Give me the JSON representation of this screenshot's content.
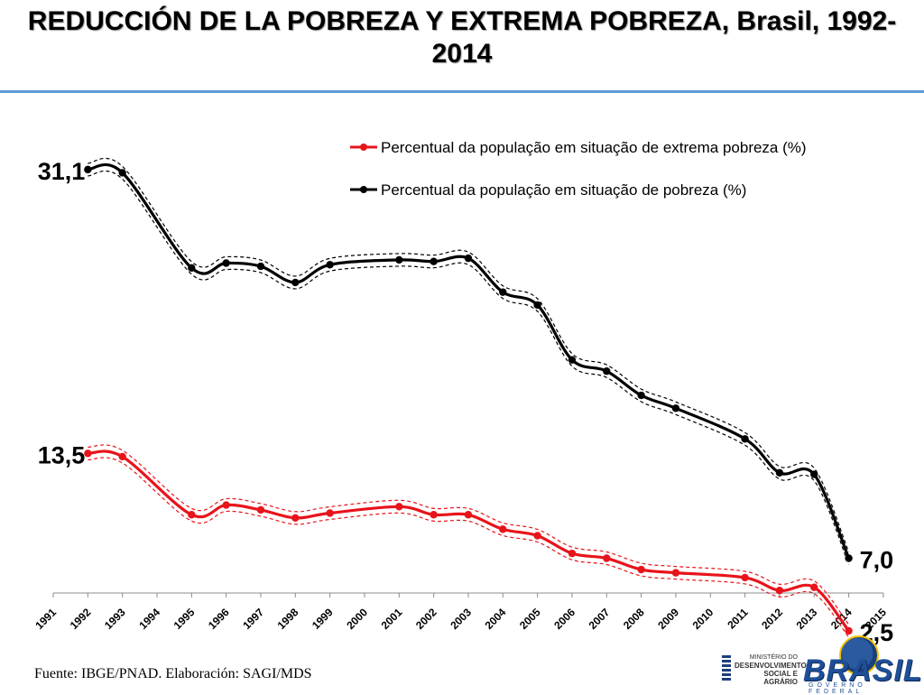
{
  "title": "REDUCCIÓN DE LA POBREZA Y EXTREMA POBREZA, Brasil, 1992-2014",
  "source": "Fuente: IBGE/PNAD. Elaboración: SAGI/MDS",
  "logos": {
    "mds_line1": "MINISTÉRIO DO",
    "mds_line2": "DESENVOLVIMENTO",
    "mds_line3": "SOCIAL E AGRÁRIO",
    "brasil_word": "BRASIL",
    "brasil_sub": "GOVERNO FEDERAL"
  },
  "chart_data": {
    "type": "line",
    "x_categories": [
      "1991",
      "1992",
      "1993",
      "1994",
      "1995",
      "1996",
      "1997",
      "1998",
      "1999",
      "2000",
      "2001",
      "2002",
      "2003",
      "2004",
      "2005",
      "2006",
      "2007",
      "2008",
      "2009",
      "2010",
      "2011",
      "2012",
      "2013",
      "2014",
      "2015"
    ],
    "series": [
      {
        "name": "Percentual da população em situação de extrema pobreza (%)",
        "color": "#e8141b",
        "x": [
          "1992",
          "1993",
          "1995",
          "1996",
          "1997",
          "1998",
          "1999",
          "2001",
          "2002",
          "2003",
          "2004",
          "2005",
          "2006",
          "2007",
          "2008",
          "2009",
          "2011",
          "2012",
          "2013",
          "2014"
        ],
        "values": [
          13.5,
          13.3,
          9.7,
          10.3,
          10.0,
          9.5,
          9.8,
          10.2,
          9.7,
          9.7,
          8.8,
          8.4,
          7.3,
          7.0,
          6.3,
          6.1,
          5.8,
          5.0,
          5.2,
          2.5
        ],
        "end_label": "2,5",
        "start_label": "13,5"
      },
      {
        "name": "Percentual da população em situação de pobreza (%)",
        "color": "#000000",
        "x": [
          "1992",
          "1993",
          "1995",
          "1996",
          "1997",
          "1998",
          "1999",
          "2001",
          "2002",
          "2003",
          "2004",
          "2005",
          "2006",
          "2007",
          "2008",
          "2009",
          "2011",
          "2012",
          "2013",
          "2014"
        ],
        "values": [
          31.1,
          30.9,
          25.0,
          25.3,
          25.1,
          24.1,
          25.2,
          25.5,
          25.4,
          25.6,
          23.5,
          22.7,
          19.3,
          18.6,
          17.1,
          16.3,
          14.4,
          12.3,
          12.2,
          7.0
        ],
        "end_label": "7,0",
        "start_label": "31,1"
      }
    ],
    "legend_position": "top-right",
    "grid": false
  }
}
